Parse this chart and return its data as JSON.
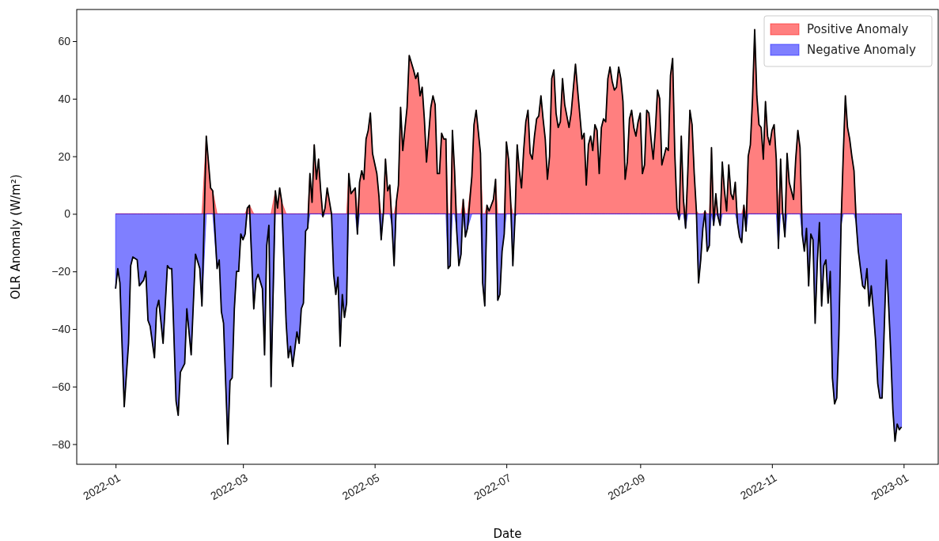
{
  "chart_data": {
    "type": "area",
    "xlabel": "Date",
    "ylabel": "OLR Anomaly (W/m²)",
    "legend": "top right",
    "xlim": [
      "2021-12-14",
      "2023-01-17"
    ],
    "ylim": [
      -87,
      71
    ],
    "xticks": [
      "2022-01",
      "2022-03",
      "2022-05",
      "2022-07",
      "2022-09",
      "2022-11",
      "2023-01"
    ],
    "yticks": [
      -80,
      -60,
      -40,
      -20,
      0,
      20,
      40,
      60
    ],
    "x": [
      "2022-01-01",
      "2022-01-02",
      "2022-01-03",
      "2022-01-05",
      "2022-01-07",
      "2022-01-08",
      "2022-01-09",
      "2022-01-11",
      "2022-01-12",
      "2022-01-14",
      "2022-01-15",
      "2022-01-16",
      "2022-01-17",
      "2022-01-19",
      "2022-01-20",
      "2022-01-21",
      "2022-01-23",
      "2022-01-25",
      "2022-01-26",
      "2022-01-27",
      "2022-01-29",
      "2022-01-30",
      "2022-01-31",
      "2022-02-02",
      "2022-02-03",
      "2022-02-05",
      "2022-02-07",
      "2022-02-09",
      "2022-02-10",
      "2022-02-12",
      "2022-02-14",
      "2022-02-15",
      "2022-02-17",
      "2022-02-18",
      "2022-02-19",
      "2022-02-20",
      "2022-02-22",
      "2022-02-23",
      "2022-02-24",
      "2022-02-25",
      "2022-02-26",
      "2022-02-27",
      "2022-02-28",
      "2022-03-01",
      "2022-03-02",
      "2022-03-03",
      "2022-03-04",
      "2022-03-06",
      "2022-03-07",
      "2022-03-08",
      "2022-03-10",
      "2022-03-11",
      "2022-03-12",
      "2022-03-13",
      "2022-03-14",
      "2022-03-16",
      "2022-03-17",
      "2022-03-18",
      "2022-03-19",
      "2022-03-21",
      "2022-03-22",
      "2022-03-23",
      "2022-03-24",
      "2022-03-26",
      "2022-03-27",
      "2022-03-28",
      "2022-03-29",
      "2022-03-30",
      "2022-03-31",
      "2022-04-01",
      "2022-04-02",
      "2022-04-03",
      "2022-04-04",
      "2022-04-05",
      "2022-04-06",
      "2022-04-07",
      "2022-04-08",
      "2022-04-09",
      "2022-04-11",
      "2022-04-12",
      "2022-04-13",
      "2022-04-14",
      "2022-04-15",
      "2022-04-16",
      "2022-04-17",
      "2022-04-18",
      "2022-04-19",
      "2022-04-20",
      "2022-04-22",
      "2022-04-23",
      "2022-04-24",
      "2022-04-25",
      "2022-04-26",
      "2022-04-27",
      "2022-04-28",
      "2022-04-29",
      "2022-04-30",
      "2022-05-02",
      "2022-05-03",
      "2022-05-04",
      "2022-05-05",
      "2022-05-06",
      "2022-05-07",
      "2022-05-08",
      "2022-05-09",
      "2022-05-10",
      "2022-05-11",
      "2022-05-12",
      "2022-05-13",
      "2022-05-14",
      "2022-05-16",
      "2022-05-17",
      "2022-05-19",
      "2022-05-20",
      "2022-05-21",
      "2022-05-22",
      "2022-05-23",
      "2022-05-24",
      "2022-05-25",
      "2022-05-27",
      "2022-05-28",
      "2022-05-29",
      "2022-05-30",
      "2022-05-31",
      "2022-06-01",
      "2022-06-02",
      "2022-06-03",
      "2022-06-04",
      "2022-06-05",
      "2022-06-06",
      "2022-06-07",
      "2022-06-08",
      "2022-06-09",
      "2022-06-10",
      "2022-06-11",
      "2022-06-12",
      "2022-06-13",
      "2022-06-15",
      "2022-06-16",
      "2022-06-17",
      "2022-06-19",
      "2022-06-20",
      "2022-06-21",
      "2022-06-22",
      "2022-06-23",
      "2022-06-24",
      "2022-06-25",
      "2022-06-26",
      "2022-06-27",
      "2022-06-28",
      "2022-06-29",
      "2022-06-30",
      "2022-07-01",
      "2022-07-02",
      "2022-07-03",
      "2022-07-04",
      "2022-07-05",
      "2022-07-06",
      "2022-07-07",
      "2022-07-08",
      "2022-07-09",
      "2022-07-10",
      "2022-07-11",
      "2022-07-12",
      "2022-07-13",
      "2022-07-14",
      "2022-07-15",
      "2022-07-16",
      "2022-07-17",
      "2022-07-18",
      "2022-07-19",
      "2022-07-20",
      "2022-07-21",
      "2022-07-22",
      "2022-07-23",
      "2022-07-24",
      "2022-07-25",
      "2022-07-26",
      "2022-07-27",
      "2022-07-28",
      "2022-07-30",
      "2022-07-31",
      "2022-08-02",
      "2022-08-03",
      "2022-08-05",
      "2022-08-06",
      "2022-08-07",
      "2022-08-08",
      "2022-08-09",
      "2022-08-10",
      "2022-08-11",
      "2022-08-12",
      "2022-08-13",
      "2022-08-14",
      "2022-08-15",
      "2022-08-16",
      "2022-08-17",
      "2022-08-18",
      "2022-08-19",
      "2022-08-20",
      "2022-08-21",
      "2022-08-22",
      "2022-08-23",
      "2022-08-24",
      "2022-08-25",
      "2022-08-26",
      "2022-08-27",
      "2022-08-28",
      "2022-08-29",
      "2022-08-30",
      "2022-08-31",
      "2022-09-01",
      "2022-09-02",
      "2022-09-03",
      "2022-09-04",
      "2022-09-05",
      "2022-09-06",
      "2022-09-07",
      "2022-09-08",
      "2022-09-09",
      "2022-09-10",
      "2022-09-11",
      "2022-09-12",
      "2022-09-13",
      "2022-09-14",
      "2022-09-15",
      "2022-09-16",
      "2022-09-17",
      "2022-09-18",
      "2022-09-19",
      "2022-09-20",
      "2022-09-21",
      "2022-09-22",
      "2022-09-23",
      "2022-09-24",
      "2022-09-25",
      "2022-09-26",
      "2022-09-27",
      "2022-09-28",
      "2022-09-29",
      "2022-09-30",
      "2022-10-01",
      "2022-10-02",
      "2022-10-03",
      "2022-10-04",
      "2022-10-05",
      "2022-10-06",
      "2022-10-07",
      "2022-10-08",
      "2022-10-09",
      "2022-10-10",
      "2022-10-11",
      "2022-10-12",
      "2022-10-13",
      "2022-10-14",
      "2022-10-15",
      "2022-10-16",
      "2022-10-17",
      "2022-10-18",
      "2022-10-19",
      "2022-10-20",
      "2022-10-21",
      "2022-10-22",
      "2022-10-23",
      "2022-10-24",
      "2022-10-25",
      "2022-10-26",
      "2022-10-27",
      "2022-10-28",
      "2022-10-29",
      "2022-10-30",
      "2022-10-31",
      "2022-11-01",
      "2022-11-02",
      "2022-11-03",
      "2022-11-04",
      "2022-11-05",
      "2022-11-06",
      "2022-11-07",
      "2022-11-08",
      "2022-11-09",
      "2022-11-10",
      "2022-11-11",
      "2022-11-12",
      "2022-11-13",
      "2022-11-14",
      "2022-11-15",
      "2022-11-16",
      "2022-11-17",
      "2022-11-18",
      "2022-11-19",
      "2022-11-20",
      "2022-11-21",
      "2022-11-22",
      "2022-11-23",
      "2022-11-24",
      "2022-11-25",
      "2022-11-26",
      "2022-11-27",
      "2022-11-28",
      "2022-11-29",
      "2022-11-30",
      "2022-12-01",
      "2022-12-02",
      "2022-12-03",
      "2022-12-04",
      "2022-12-05",
      "2022-12-06",
      "2022-12-07",
      "2022-12-08",
      "2022-12-09",
      "2022-12-10",
      "2022-12-11",
      "2022-12-12",
      "2022-12-13",
      "2022-12-14",
      "2022-12-15",
      "2022-12-16",
      "2022-12-17",
      "2022-12-18",
      "2022-12-19",
      "2022-12-20",
      "2022-12-21",
      "2022-12-22",
      "2022-12-23",
      "2022-12-24",
      "2022-12-25",
      "2022-12-26",
      "2022-12-27",
      "2022-12-28",
      "2022-12-29",
      "2022-12-30",
      "2022-12-31"
    ],
    "series": [
      {
        "name": "Positive Anomaly",
        "type": "area",
        "color": "#ff0000",
        "values": [
          0,
          0,
          0,
          0,
          0,
          0,
          0,
          0,
          0,
          0,
          0,
          0,
          0,
          0,
          0,
          0,
          0,
          0,
          0,
          0,
          0,
          0,
          0,
          0,
          0,
          0,
          0,
          0,
          0,
          27,
          9,
          8,
          0,
          0,
          0,
          0,
          0,
          0,
          0,
          0,
          0,
          0,
          0,
          0,
          0,
          2,
          3,
          0,
          0,
          0,
          0,
          0,
          0,
          0,
          0,
          8,
          2,
          9,
          4,
          0,
          0,
          0,
          0,
          0,
          0,
          0,
          0,
          0,
          0,
          14,
          4,
          24,
          12,
          19,
          8,
          0,
          2,
          9,
          0,
          0,
          0,
          0,
          0,
          0,
          0,
          0,
          14,
          7,
          9,
          0,
          11,
          15,
          12,
          26,
          29,
          35,
          21,
          14,
          6,
          0,
          0,
          19,
          8,
          10,
          0,
          0,
          4,
          10,
          37,
          22,
          37,
          55,
          50,
          47,
          49,
          41,
          44,
          33,
          18,
          37,
          41,
          38,
          14,
          14,
          28,
          26,
          26,
          0,
          0,
          29,
          15,
          0,
          0,
          0,
          5,
          0,
          0,
          13,
          31,
          36,
          21,
          0,
          0,
          3,
          1,
          3,
          5,
          12,
          0,
          0,
          0,
          0,
          25,
          19,
          4,
          0,
          0,
          24,
          15,
          9,
          22,
          32,
          36,
          21,
          19,
          27,
          33,
          34,
          41,
          33,
          26,
          12,
          20,
          47,
          50,
          35,
          30,
          32,
          47,
          38,
          30,
          35,
          52,
          43,
          26,
          28,
          10,
          24,
          27,
          22,
          31,
          29,
          14,
          30,
          33,
          32,
          47,
          51,
          46,
          43,
          44,
          51,
          47,
          39,
          12,
          18,
          33,
          36,
          30,
          27,
          32,
          35,
          14,
          17,
          36,
          35,
          26,
          19,
          29,
          43,
          40,
          17,
          20,
          23,
          22,
          48,
          54,
          21,
          2,
          0,
          27,
          5,
          0,
          14,
          36,
          31,
          14,
          1,
          0,
          0,
          0,
          1,
          0,
          0,
          23,
          0,
          7,
          0,
          0,
          18,
          8,
          1,
          17,
          7,
          5,
          11,
          0,
          0,
          0,
          3,
          0,
          20,
          24,
          40,
          64,
          41,
          31,
          30,
          19,
          39,
          27,
          24,
          29,
          31,
          19,
          0,
          19,
          0,
          0,
          21,
          11,
          8,
          5,
          19,
          29,
          23,
          0,
          0,
          0,
          0,
          0,
          0,
          0,
          0,
          0,
          0,
          0,
          0,
          0,
          0,
          0,
          0,
          0,
          0,
          0,
          20,
          41,
          30,
          26,
          20,
          15,
          0,
          0,
          0,
          0,
          0,
          0,
          0,
          0,
          0,
          0,
          0,
          0,
          0,
          0,
          0,
          0,
          0,
          0,
          0,
          0,
          0,
          0
        ]
      },
      {
        "name": "Negative Anomaly",
        "type": "area",
        "color": "#0000ff",
        "values": [
          -26,
          -19,
          -24,
          -67,
          -45,
          -18,
          -15,
          -16,
          -25,
          -23,
          -20,
          -37,
          -39,
          -50,
          -33,
          -30,
          -45,
          -18,
          -19,
          -19,
          -65,
          -70,
          -55,
          -52,
          -33,
          -49,
          -14,
          -19,
          -32,
          0,
          0,
          0,
          -19,
          -16,
          -34,
          -38,
          -80,
          -58,
          -57,
          -33,
          -20,
          -20,
          -7,
          -9,
          -7,
          0,
          0,
          -33,
          -23,
          -21,
          -26,
          -49,
          -11,
          -4,
          -60,
          0,
          0,
          0,
          0,
          -38,
          -50,
          -46,
          -53,
          -41,
          -45,
          -33,
          -31,
          -6,
          -5,
          0,
          0,
          0,
          0,
          0,
          0,
          -1,
          0,
          0,
          0,
          -21,
          -28,
          -22,
          -46,
          -28,
          -36,
          -31,
          0,
          0,
          0,
          -7,
          0,
          0,
          0,
          0,
          0,
          0,
          0,
          0,
          0,
          -9,
          0,
          0,
          0,
          0,
          -4,
          -18,
          0,
          0,
          0,
          0,
          0,
          0,
          0,
          0,
          0,
          0,
          0,
          0,
          0,
          0,
          0,
          0,
          0,
          0,
          0,
          0,
          0,
          -19,
          -18,
          0,
          0,
          -6,
          -18,
          -14,
          0,
          -8,
          -5,
          0,
          0,
          0,
          0,
          -24,
          -32,
          0,
          0,
          0,
          0,
          0,
          -30,
          -28,
          -13,
          -7,
          0,
          0,
          0,
          -18,
          -1,
          0,
          0,
          0,
          0,
          0,
          0,
          0,
          0,
          0,
          0,
          0,
          0,
          0,
          0,
          0,
          0,
          0,
          0,
          0,
          0,
          0,
          0,
          0,
          0,
          0,
          0,
          0,
          0,
          0,
          0,
          0,
          0,
          0,
          0,
          0,
          0,
          0,
          0,
          0,
          0,
          0,
          0,
          0,
          0,
          0,
          0,
          0,
          0,
          0,
          0,
          0,
          0,
          0,
          0,
          0,
          0,
          0,
          0,
          0,
          0,
          0,
          0,
          0,
          0,
          0,
          0,
          0,
          0,
          0,
          0,
          0,
          0,
          -2,
          0,
          0,
          -5,
          0,
          0,
          0,
          0,
          0,
          -24,
          -16,
          -5,
          0,
          -13,
          -11,
          0,
          -4,
          0,
          -1,
          -4,
          0,
          0,
          0,
          0,
          0,
          0,
          0,
          -3,
          -8,
          -10,
          0,
          -6,
          0,
          0,
          0,
          0,
          0,
          0,
          0,
          0,
          0,
          0,
          0,
          0,
          0,
          0,
          -12,
          0,
          0,
          -8,
          0,
          0,
          0,
          0,
          0,
          0,
          0,
          -7,
          -13,
          -5,
          -25,
          -7,
          -9,
          -38,
          -17,
          -3,
          -32,
          -18,
          -16,
          -31,
          -20,
          -57,
          -66,
          -64,
          -42,
          -4,
          0,
          0,
          0,
          0,
          0,
          0,
          -3,
          -13,
          -19,
          -25,
          -26,
          -19,
          -32,
          -25,
          -34,
          -44,
          -59,
          -64,
          -64,
          -40,
          -16,
          -31,
          -48,
          -68,
          -79,
          -73,
          -75,
          -74
        ]
      },
      {
        "type": "line",
        "color": "#000000",
        "values": [
          -26,
          -19,
          -24,
          -67,
          -45,
          -18,
          -15,
          -16,
          -25,
          -23,
          -20,
          -37,
          -39,
          -50,
          -33,
          -30,
          -45,
          -18,
          -19,
          -19,
          -65,
          -70,
          -55,
          -52,
          -33,
          -49,
          -14,
          -19,
          -32,
          27,
          9,
          8,
          -19,
          -16,
          -34,
          -38,
          -80,
          -58,
          -57,
          -33,
          -20,
          -20,
          -7,
          -9,
          -7,
          2,
          3,
          -33,
          -23,
          -21,
          -26,
          -49,
          -11,
          -4,
          -60,
          8,
          2,
          9,
          4,
          -38,
          -50,
          -46,
          -53,
          -41,
          -45,
          -33,
          -31,
          -6,
          -5,
          14,
          4,
          24,
          12,
          19,
          8,
          -1,
          2,
          9,
          0,
          -21,
          -28,
          -22,
          -46,
          -28,
          -36,
          -31,
          14,
          7,
          9,
          -7,
          11,
          15,
          12,
          26,
          29,
          35,
          21,
          14,
          6,
          -9,
          0,
          19,
          8,
          10,
          -4,
          -18,
          4,
          10,
          37,
          22,
          37,
          55,
          50,
          47,
          49,
          41,
          44,
          33,
          18,
          37,
          41,
          38,
          14,
          14,
          28,
          26,
          26,
          -19,
          -18,
          29,
          15,
          -6,
          -18,
          -14,
          5,
          -8,
          -5,
          13,
          31,
          36,
          21,
          -24,
          -32,
          3,
          1,
          3,
          5,
          12,
          -30,
          -28,
          -13,
          -7,
          25,
          19,
          4,
          -18,
          -1,
          24,
          15,
          9,
          22,
          32,
          36,
          21,
          19,
          27,
          33,
          34,
          41,
          33,
          26,
          12,
          20,
          47,
          50,
          35,
          30,
          32,
          47,
          38,
          30,
          35,
          52,
          43,
          26,
          28,
          10,
          24,
          27,
          22,
          31,
          29,
          14,
          30,
          33,
          32,
          47,
          51,
          46,
          43,
          44,
          51,
          47,
          39,
          12,
          18,
          33,
          36,
          30,
          27,
          32,
          35,
          14,
          17,
          36,
          35,
          26,
          19,
          29,
          43,
          40,
          17,
          20,
          23,
          22,
          48,
          54,
          21,
          2,
          -2,
          27,
          5,
          -5,
          14,
          36,
          31,
          14,
          1,
          -24,
          -16,
          -5,
          1,
          -13,
          -11,
          23,
          -4,
          7,
          -1,
          -4,
          18,
          8,
          1,
          17,
          7,
          5,
          11,
          -3,
          -8,
          -10,
          3,
          -6,
          20,
          24,
          40,
          64,
          41,
          31,
          30,
          19,
          39,
          27,
          24,
          29,
          31,
          19,
          -12,
          19,
          0,
          -8,
          21,
          11,
          8,
          5,
          19,
          29,
          23,
          -7,
          -13,
          -5,
          -25,
          -7,
          -9,
          -38,
          -17,
          -3,
          -32,
          -18,
          -16,
          -31,
          -20,
          -57,
          -66,
          -64,
          -42,
          -4,
          20,
          41,
          30,
          26,
          20,
          15,
          -3,
          -13,
          -19,
          -25,
          -26,
          -19,
          -32,
          -25,
          -34,
          -44,
          -59,
          -64,
          -64,
          -40,
          -16,
          -31,
          -48,
          -68,
          -79,
          -73,
          -75,
          -74
        ]
      }
    ]
  }
}
